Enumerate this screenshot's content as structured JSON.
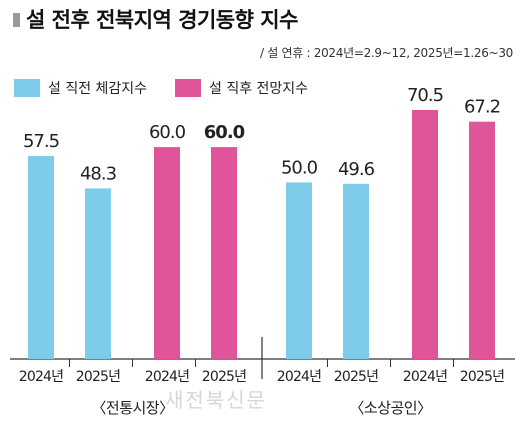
{
  "title": "설 전후 전북지역 경기동향 지수",
  "subtitle": "/ 설 연휴 : 2024년=2.9~12, 2025년=1.26~30",
  "watermark": "새전북신문",
  "colors": {
    "before": "#7dcdea",
    "after": "#e0559a",
    "title_marker": "#9a9a9a"
  },
  "chart_data": {
    "type": "bar",
    "title": "설 전후 전북지역 경기동향 지수",
    "subtitle": "/ 설 연휴 : 2024년=2.9~12, 2025년=1.26~30",
    "legend_position": "top-left",
    "grid": false,
    "ylim": [
      0,
      75
    ],
    "series": [
      {
        "name": "설 직전 체감지수",
        "color": "#7dcdea"
      },
      {
        "name": "설 직후 전망지수",
        "color": "#e0559a"
      }
    ],
    "groups": [
      {
        "label": "〈전통시장〉",
        "bars": [
          {
            "series": 0,
            "category": "2024년",
            "value": 57.5,
            "label": "57.5"
          },
          {
            "series": 0,
            "category": "2025년",
            "value": 48.3,
            "label": "48.3"
          },
          {
            "series": 1,
            "category": "2024년",
            "value": 60.0,
            "label": "60.0"
          },
          {
            "series": 1,
            "category": "2025년",
            "value": 60.0,
            "label": "60.0",
            "bold": true
          }
        ]
      },
      {
        "label": "〈소상공인〉",
        "bars": [
          {
            "series": 0,
            "category": "2024년",
            "value": 50.0,
            "label": "50.0"
          },
          {
            "series": 0,
            "category": "2025년",
            "value": 49.6,
            "label": "49.6"
          },
          {
            "series": 1,
            "category": "2024년",
            "value": 70.5,
            "label": "70.5"
          },
          {
            "series": 1,
            "category": "2025년",
            "value": 67.2,
            "label": "67.2"
          }
        ]
      }
    ]
  }
}
